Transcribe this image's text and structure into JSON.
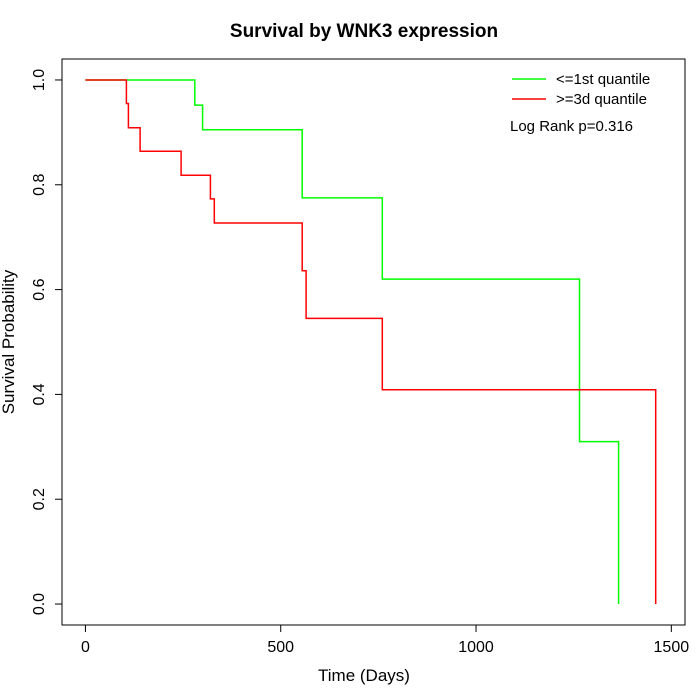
{
  "chart_data": {
    "type": "line",
    "title": "Survival by WNK3 expression",
    "xlabel": "Time (Days)",
    "ylabel": "Survival Probability",
    "xlim": [
      -60,
      1535
    ],
    "ylim": [
      -0.04,
      1.04
    ],
    "x_ticks": [
      0,
      500,
      1000,
      1500
    ],
    "y_ticks": [
      0.0,
      0.2,
      0.4,
      0.6,
      0.8,
      1.0
    ],
    "x_tick_labels": [
      "0",
      "500",
      "1000",
      "1500"
    ],
    "y_tick_labels": [
      "0.0",
      "0.2",
      "0.4",
      "0.6",
      "0.8",
      "1.0"
    ],
    "grid": false,
    "legend_position": "top-right",
    "annotation": "Log Rank p=0.316",
    "series": [
      {
        "name": "<=1st quantile",
        "color": "#00ff00",
        "steps": [
          [
            0,
            1.0
          ],
          [
            280,
            1.0
          ],
          [
            280,
            0.952
          ],
          [
            300,
            0.952
          ],
          [
            300,
            0.905
          ],
          [
            555,
            0.905
          ],
          [
            555,
            0.775
          ],
          [
            760,
            0.775
          ],
          [
            760,
            0.62
          ],
          [
            1265,
            0.62
          ],
          [
            1265,
            0.31
          ],
          [
            1365,
            0.31
          ],
          [
            1365,
            0.0
          ]
        ]
      },
      {
        "name": ">=3d quantile",
        "color": "#ff0000",
        "steps": [
          [
            0,
            1.0
          ],
          [
            105,
            1.0
          ],
          [
            105,
            0.955
          ],
          [
            110,
            0.955
          ],
          [
            110,
            0.909
          ],
          [
            140,
            0.909
          ],
          [
            140,
            0.864
          ],
          [
            245,
            0.864
          ],
          [
            245,
            0.818
          ],
          [
            320,
            0.818
          ],
          [
            320,
            0.773
          ],
          [
            330,
            0.773
          ],
          [
            330,
            0.727
          ],
          [
            555,
            0.727
          ],
          [
            555,
            0.636
          ],
          [
            565,
            0.636
          ],
          [
            565,
            0.545
          ],
          [
            760,
            0.545
          ],
          [
            760,
            0.409
          ],
          [
            1460,
            0.409
          ],
          [
            1460,
            0.0
          ]
        ]
      }
    ]
  }
}
